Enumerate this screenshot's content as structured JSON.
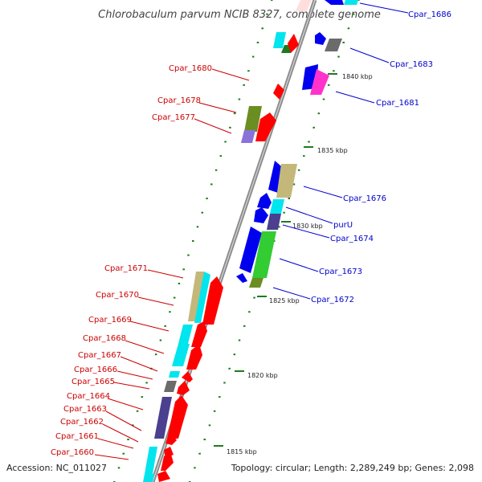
{
  "title": "Chlorobaculum parvum NCIB 8327, complete genome",
  "accession": "Accession: NC_011027",
  "topology": "Topology: circular; Length: 2,289,249 bp; Genes: 2,098",
  "colors": {
    "red": "#ff0000",
    "blue": "#0000ee",
    "cyan": "#00e5ee",
    "khaki": "#c4b77a",
    "olive": "#6b8e23",
    "slate": "#4b3f8f",
    "purple": "#8a72d8",
    "green": "#33cc33",
    "gray": "#6b6b6b",
    "magenta": "#ff33cc",
    "ticks": "#1f7a1f",
    "backbone": "#8c8c8c"
  },
  "ticks": [
    {
      "label": "1840 kbp"
    },
    {
      "label": "1835 kbp"
    },
    {
      "label": "1830 kbp"
    },
    {
      "label": "1825 kbp"
    },
    {
      "label": "1820 kbp"
    },
    {
      "label": "1815 kbp"
    }
  ],
  "genes_left": [
    {
      "label": "Cpar_1680"
    },
    {
      "label": "Cpar_1678"
    },
    {
      "label": "Cpar_1677"
    },
    {
      "label": "Cpar_1671"
    },
    {
      "label": "Cpar_1670"
    },
    {
      "label": "Cpar_1669"
    },
    {
      "label": "Cpar_1668"
    },
    {
      "label": "Cpar_1667"
    },
    {
      "label": "Cpar_1666"
    },
    {
      "label": "Cpar_1665"
    },
    {
      "label": "Cpar_1664"
    },
    {
      "label": "Cpar_1663"
    },
    {
      "label": "Cpar_1662"
    },
    {
      "label": "Cpar_1661"
    },
    {
      "label": "Cpar_1660"
    }
  ],
  "genes_right": [
    {
      "label": "Cpar_1686"
    },
    {
      "label": "Cpar_1683"
    },
    {
      "label": "Cpar_1681"
    },
    {
      "label": "Cpar_1676"
    },
    {
      "label": "purU"
    },
    {
      "label": "Cpar_1674"
    },
    {
      "label": "Cpar_1673"
    },
    {
      "label": "Cpar_1672"
    }
  ]
}
